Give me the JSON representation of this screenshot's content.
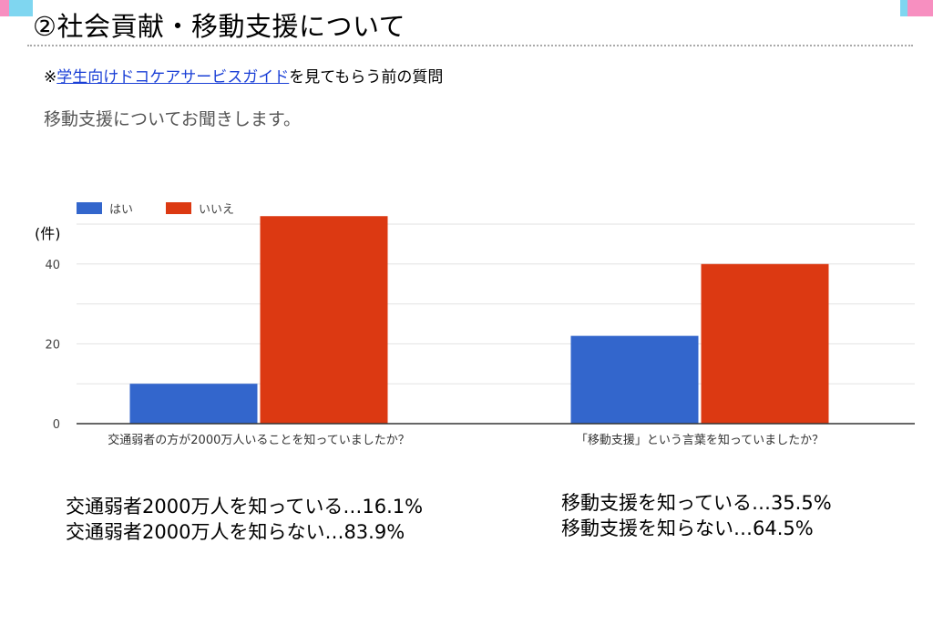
{
  "slide": {
    "title": "②社会貢献・移動支援について",
    "note_prefix": "※",
    "note_link": "学生向けドコケアサービスガイド",
    "note_suffix": "を見てもらう前の質問",
    "question": "移動支援についてお聞きします。"
  },
  "chart_data": {
    "type": "bar",
    "categories": [
      "交通弱者の方が2000万人いることを知っていましたか？",
      "「移動支援」という言葉を知っていましたか？"
    ],
    "series": [
      {
        "name": "はい",
        "color": "#3366cc",
        "values": [
          10,
          22
        ]
      },
      {
        "name": "いいえ",
        "color": "#dc3912",
        "values": [
          52,
          40
        ]
      }
    ],
    "ylabel": "(件)",
    "ylim": [
      0,
      50
    ],
    "yticks": [
      0,
      20,
      40
    ],
    "gridlines": [
      0,
      10,
      20,
      30,
      40,
      50
    ],
    "legend": "top-left"
  },
  "summary": {
    "left": [
      "交通弱者2000万人を知っている…16.1%",
      "交通弱者2000万人を知らない…83.9%"
    ],
    "right": [
      "移動支援を知っている…35.5%",
      "移動支援を知らない…64.5%"
    ]
  }
}
